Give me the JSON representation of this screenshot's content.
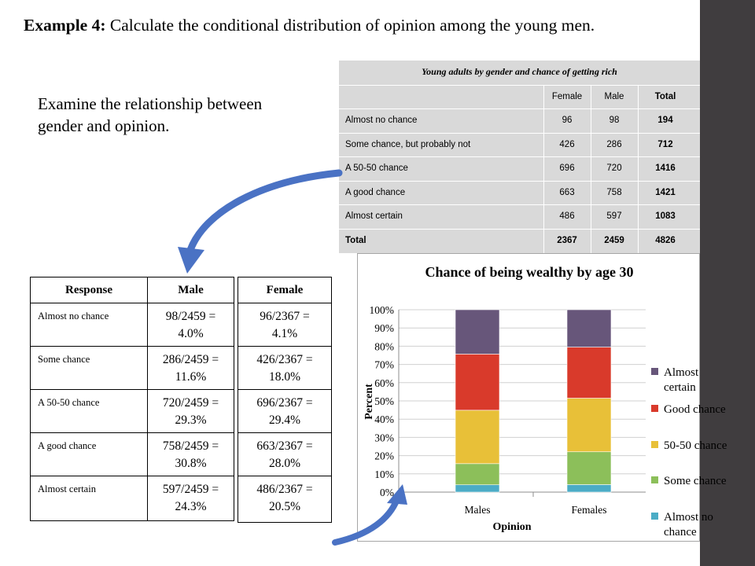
{
  "heading": {
    "lead": "Example 4:",
    "text": "Calculate the conditional distribution of opinion among the young men."
  },
  "intro": {
    "line1": "Examine the relationship between",
    "line2": "gender and opinion."
  },
  "source_table": {
    "title": "Young adults by gender and chance of getting rich",
    "headers": [
      "",
      "Female",
      "Male",
      "Total"
    ],
    "rows": [
      [
        "Almost no chance",
        "96",
        "98",
        "194"
      ],
      [
        "Some chance, but probably not",
        "426",
        "286",
        "712"
      ],
      [
        "A 50-50 chance",
        "696",
        "720",
        "1416"
      ],
      [
        "A good chance",
        "663",
        "758",
        "1421"
      ],
      [
        "Almost certain",
        "486",
        "597",
        "1083"
      ],
      [
        "Total",
        "2367",
        "2459",
        "4826"
      ]
    ]
  },
  "cond_table": {
    "header_response": "Response",
    "header_male": "Male",
    "header_female": "Female",
    "responses": [
      "Almost no chance",
      "Some chance",
      "A 50-50 chance",
      "A good chance",
      "Almost certain"
    ],
    "male": [
      [
        "98/2459 =",
        "4.0%"
      ],
      [
        "286/2459 =",
        "11.6%"
      ],
      [
        "720/2459 =",
        "29.3%"
      ],
      [
        "758/2459 =",
        "30.8%"
      ],
      [
        "597/2459 =",
        "24.3%"
      ]
    ],
    "female": [
      [
        "96/2367 =",
        "4.1%"
      ],
      [
        "426/2367 =",
        "18.0%"
      ],
      [
        "696/2367 =",
        "29.4%"
      ],
      [
        "663/2367 =",
        "28.0%"
      ],
      [
        "486/2367 =",
        "20.5%"
      ]
    ]
  },
  "colors": {
    "arrow": "#4a72c4",
    "sidebar": "#403d3f",
    "table_bg": "#d9d9d9"
  },
  "chart_data": {
    "type": "bar",
    "stacked": true,
    "title": "Chance of being wealthy by age 30",
    "xlabel": "Opinion",
    "ylabel": "Percent",
    "categories": [
      "Males",
      "Females"
    ],
    "ylim": [
      0,
      100
    ],
    "y_ticks": [
      "0%",
      "10%",
      "20%",
      "30%",
      "40%",
      "50%",
      "60%",
      "70%",
      "80%",
      "90%",
      "100%"
    ],
    "legend_position": "right",
    "series": [
      {
        "name": "Almost no chance",
        "values": [
          4.0,
          4.1
        ],
        "color": "#4bacc6"
      },
      {
        "name": "Some chance",
        "values": [
          11.6,
          18.0
        ],
        "color": "#8cbf5a"
      },
      {
        "name": "50-50 chance",
        "values": [
          29.3,
          29.4
        ],
        "color": "#e8c038"
      },
      {
        "name": "Good chance",
        "values": [
          30.8,
          28.0
        ],
        "color": "#d93a2b"
      },
      {
        "name": "Almost certain",
        "values": [
          24.3,
          20.5
        ],
        "color": "#67567a"
      }
    ],
    "legend_order": [
      [
        "Almost",
        "certain"
      ],
      [
        "Good chance"
      ],
      [
        "50-50 chance"
      ],
      [
        "Some chance"
      ],
      [
        "Almost no",
        "chance"
      ]
    ]
  }
}
